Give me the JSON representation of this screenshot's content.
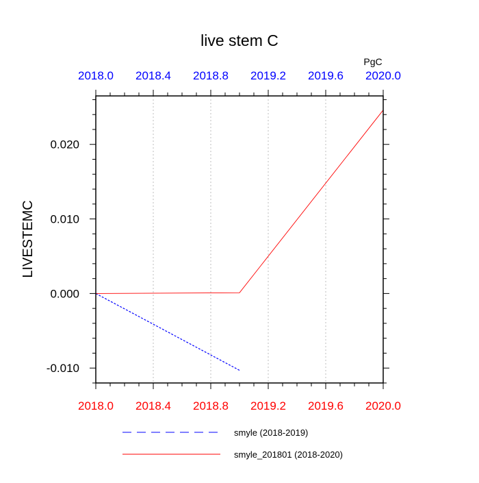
{
  "chart_data": {
    "type": "line",
    "title": "live stem C",
    "units_label": "PgC",
    "ylabel": "LIVESTEMC",
    "xlim": [
      2018.0,
      2020.0
    ],
    "ylim": [
      -0.012,
      0.0265
    ],
    "x_ticks": [
      2018.0,
      2018.4,
      2018.8,
      2019.2,
      2019.6,
      2020.0
    ],
    "x_tick_labels": [
      "2018.0",
      "2018.4",
      "2018.8",
      "2019.2",
      "2019.6",
      "2020.0"
    ],
    "x_minor_ticks": [
      2018.1,
      2018.2,
      2018.3,
      2018.5,
      2018.6,
      2018.7,
      2018.9,
      2019.0,
      2019.1,
      2019.3,
      2019.4,
      2019.5,
      2019.7,
      2019.8,
      2019.9
    ],
    "y_ticks": [
      -0.01,
      0.0,
      0.01,
      0.02
    ],
    "y_tick_labels": [
      "-0.010",
      "0.000",
      "0.010",
      "0.020"
    ],
    "y_minor_ticks": [
      -0.012,
      -0.008,
      -0.006,
      -0.004,
      -0.002,
      0.002,
      0.004,
      0.006,
      0.008,
      0.012,
      0.014,
      0.016,
      0.018,
      0.022,
      0.024,
      0.026
    ],
    "grid": "vertical dotted at x ticks",
    "top_axis_color": "#0000ff",
    "bottom_axis_color": "#ff0000",
    "series": [
      {
        "name": "smyle (2018-2019)",
        "color": "#0000ff",
        "dash": "dashed",
        "x": [
          2018.0,
          2019.0
        ],
        "y": [
          0.0,
          -0.0103
        ]
      },
      {
        "name": "smyle_201801 (2018-2020)",
        "color": "#ff0000",
        "dash": "solid",
        "x": [
          2018.0,
          2019.0,
          2020.0
        ],
        "y": [
          0.0,
          0.0001,
          0.0246
        ]
      }
    ],
    "legend_placement": "bottom-center"
  }
}
